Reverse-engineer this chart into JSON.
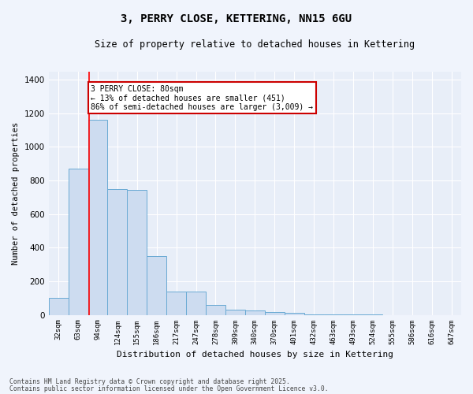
{
  "title1": "3, PERRY CLOSE, KETTERING, NN15 6GU",
  "title2": "Size of property relative to detached houses in Kettering",
  "xlabel": "Distribution of detached houses by size in Kettering",
  "ylabel": "Number of detached properties",
  "bin_labels": [
    "32sqm",
    "63sqm",
    "94sqm",
    "124sqm",
    "155sqm",
    "186sqm",
    "217sqm",
    "247sqm",
    "278sqm",
    "309sqm",
    "340sqm",
    "370sqm",
    "401sqm",
    "432sqm",
    "463sqm",
    "493sqm",
    "524sqm",
    "555sqm",
    "586sqm",
    "616sqm",
    "647sqm"
  ],
  "bin_values": [
    100,
    870,
    1160,
    750,
    745,
    350,
    140,
    140,
    60,
    30,
    25,
    15,
    10,
    3,
    2,
    1,
    1,
    0,
    0,
    0,
    0
  ],
  "bar_color": "#cddcf0",
  "bar_edge_color": "#6aaad4",
  "red_line_x": 1.55,
  "annotation_text": "3 PERRY CLOSE: 80sqm\n← 13% of detached houses are smaller (451)\n86% of semi-detached houses are larger (3,009) →",
  "annotation_box_color": "#ffffff",
  "annotation_box_edge": "#cc0000",
  "ylim": [
    0,
    1450
  ],
  "yticks": [
    0,
    200,
    400,
    600,
    800,
    1000,
    1200,
    1400
  ],
  "bg_color": "#e8eef8",
  "grid_color": "#ffffff",
  "fig_color": "#f0f4fc",
  "footer1": "Contains HM Land Registry data © Crown copyright and database right 2025.",
  "footer2": "Contains public sector information licensed under the Open Government Licence v3.0."
}
